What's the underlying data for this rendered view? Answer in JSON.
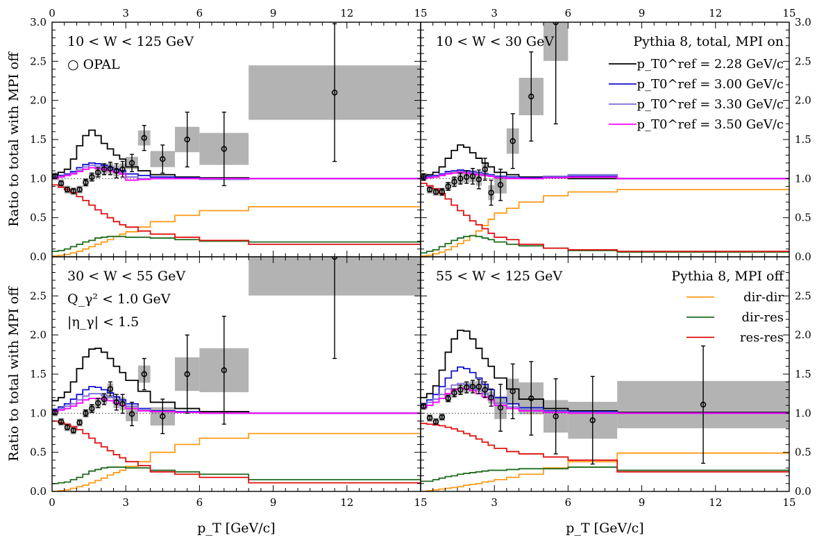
{
  "chart_data": {
    "type": "line",
    "layout": "2x2 panels, shared axes",
    "xlabel": "p_T [GeV/c]",
    "ylabel": "Ratio to total with MPI off",
    "xlim": [
      0,
      15
    ],
    "ylim": [
      0,
      3.0
    ],
    "x_ticks": [
      "0",
      "3",
      "6",
      "9",
      "12",
      "15"
    ],
    "y_ticks": [
      "0.0",
      "0.5",
      "1.0",
      "1.5",
      "2.0",
      "2.5",
      "3.0"
    ],
    "reference_line": 1.0,
    "legend_total": {
      "title": "Pythia 8, total, MPI on",
      "entries": [
        {
          "label": "p_T0^ref = 2.28 GeV/c",
          "color": "#000000"
        },
        {
          "label": "p_T0^ref = 3.00 GeV/c",
          "color": "#1010d0"
        },
        {
          "label": "p_T0^ref = 3.30 GeV/c",
          "color": "#7a6ad8"
        },
        {
          "label": "p_T0^ref = 3.50 GeV/c",
          "color": "#ff00ff"
        }
      ]
    },
    "legend_components": {
      "title": "Pythia 8, MPI off",
      "entries": [
        {
          "label": "dir-dir",
          "color": "#ff9a1a"
        },
        {
          "label": "dir-res",
          "color": "#1e6b1e"
        },
        {
          "label": "res-res",
          "color": "#e01010"
        }
      ]
    },
    "data_label": "OPAL",
    "panels": [
      {
        "labels": [
          "10 < W < 125 GeV",
          "○ OPAL"
        ],
        "edges": [
          0,
          0.25,
          0.5,
          0.75,
          1.0,
          1.25,
          1.5,
          1.75,
          2.0,
          2.25,
          2.5,
          2.75,
          3.0,
          3.5,
          4.0,
          5.0,
          6.0,
          8.0,
          15.0
        ],
        "series": {
          "p228": [
            1.05,
            1.08,
            1.12,
            1.25,
            1.42,
            1.55,
            1.62,
            1.55,
            1.45,
            1.38,
            1.3,
            1.25,
            1.15,
            1.1,
            1.05,
            1.02,
            1.01,
            1.0
          ],
          "p300": [
            1.02,
            1.04,
            1.06,
            1.09,
            1.14,
            1.18,
            1.2,
            1.19,
            1.17,
            1.14,
            1.12,
            1.1,
            1.06,
            1.04,
            1.02,
            1.01,
            1.0,
            1.0
          ],
          "p330": [
            1.01,
            1.03,
            1.05,
            1.07,
            1.11,
            1.15,
            1.17,
            1.16,
            1.15,
            1.13,
            1.1,
            1.08,
            1.02,
            1.0,
            1.0,
            1.0,
            0.99,
            1.0
          ],
          "p350": [
            1.0,
            1.02,
            1.04,
            1.06,
            1.09,
            1.12,
            1.14,
            1.13,
            1.12,
            1.1,
            1.08,
            1.06,
            0.98,
            0.99,
            1.0,
            1.0,
            1.0,
            1.0
          ],
          "dir_dir": [
            0.01,
            0.02,
            0.03,
            0.05,
            0.07,
            0.1,
            0.13,
            0.16,
            0.19,
            0.22,
            0.26,
            0.29,
            0.32,
            0.38,
            0.45,
            0.53,
            0.59,
            0.64
          ],
          "dir_res": [
            0.07,
            0.08,
            0.1,
            0.13,
            0.16,
            0.19,
            0.21,
            0.24,
            0.25,
            0.26,
            0.26,
            0.26,
            0.25,
            0.25,
            0.24,
            0.22,
            0.2,
            0.19
          ],
          "res_res": [
            0.92,
            0.89,
            0.86,
            0.82,
            0.77,
            0.72,
            0.66,
            0.6,
            0.55,
            0.5,
            0.45,
            0.41,
            0.38,
            0.33,
            0.29,
            0.25,
            0.21,
            0.16
          ]
        },
        "opal": [
          {
            "x": 0.12,
            "y": 1.03,
            "err": 0.03
          },
          {
            "x": 0.37,
            "y": 0.94,
            "err": 0.03
          },
          {
            "x": 0.62,
            "y": 0.86,
            "err": 0.03
          },
          {
            "x": 0.87,
            "y": 0.84,
            "err": 0.03
          },
          {
            "x": 1.12,
            "y": 0.86,
            "err": 0.03
          },
          {
            "x": 1.37,
            "y": 0.95,
            "err": 0.04
          },
          {
            "x": 1.62,
            "y": 1.02,
            "err": 0.05
          },
          {
            "x": 1.87,
            "y": 1.08,
            "err": 0.06
          },
          {
            "x": 2.12,
            "y": 1.12,
            "err": 0.07
          },
          {
            "x": 2.37,
            "y": 1.13,
            "err": 0.08
          },
          {
            "x": 2.62,
            "y": 1.1,
            "err": 0.09
          },
          {
            "x": 2.87,
            "y": 1.12,
            "err": 0.1
          },
          {
            "x": 3.25,
            "y": 1.2,
            "err": 0.11
          },
          {
            "x": 3.75,
            "y": 1.52,
            "err": 0.16
          },
          {
            "x": 4.5,
            "y": 1.25,
            "err": 0.18
          },
          {
            "x": 5.5,
            "y": 1.5,
            "err": 0.35
          },
          {
            "x": 7.0,
            "y": 1.38,
            "err": 0.47
          },
          {
            "x": 11.5,
            "y": 2.1,
            "err": 0.88
          }
        ]
      },
      {
        "labels": [
          "10 < W < 30 GeV"
        ],
        "edges": [
          0,
          0.25,
          0.5,
          0.75,
          1.0,
          1.25,
          1.5,
          1.75,
          2.0,
          2.25,
          2.5,
          2.75,
          3.0,
          3.5,
          4.0,
          5.0,
          6.0,
          8.0,
          15.0
        ],
        "series": {
          "p228": [
            1.02,
            1.05,
            1.08,
            1.15,
            1.26,
            1.36,
            1.43,
            1.4,
            1.33,
            1.26,
            1.2,
            1.15,
            1.08,
            1.05,
            1.02,
            1.01,
            1.0,
            1.0
          ],
          "p300": [
            1.01,
            1.03,
            1.04,
            1.06,
            1.09,
            1.1,
            1.11,
            1.1,
            1.09,
            1.08,
            1.06,
            1.05,
            1.03,
            1.02,
            1.01,
            1.02,
            1.03,
            1.0
          ],
          "p330": [
            1.0,
            1.02,
            1.03,
            1.05,
            1.07,
            1.09,
            1.09,
            1.08,
            1.08,
            1.07,
            1.05,
            1.04,
            1.02,
            1.01,
            1.0,
            1.03,
            1.05,
            1.0
          ],
          "p350": [
            1.0,
            1.01,
            1.02,
            1.04,
            1.06,
            1.07,
            1.08,
            1.07,
            1.06,
            1.05,
            1.04,
            1.03,
            1.01,
            1.0,
            1.0,
            1.01,
            1.02,
            1.0
          ],
          "dir_dir": [
            0.01,
            0.02,
            0.04,
            0.06,
            0.09,
            0.13,
            0.17,
            0.21,
            0.27,
            0.33,
            0.4,
            0.48,
            0.56,
            0.62,
            0.7,
            0.78,
            0.83,
            0.86
          ],
          "dir_res": [
            0.05,
            0.07,
            0.09,
            0.13,
            0.17,
            0.21,
            0.24,
            0.26,
            0.27,
            0.26,
            0.24,
            0.22,
            0.19,
            0.16,
            0.14,
            0.11,
            0.08,
            0.06
          ],
          "res_res": [
            0.94,
            0.91,
            0.87,
            0.81,
            0.74,
            0.66,
            0.59,
            0.53,
            0.46,
            0.41,
            0.36,
            0.3,
            0.25,
            0.22,
            0.16,
            0.11,
            0.09,
            0.07
          ]
        },
        "opal": [
          {
            "x": 0.12,
            "y": 1.02,
            "err": 0.04
          },
          {
            "x": 0.37,
            "y": 0.86,
            "err": 0.03
          },
          {
            "x": 0.62,
            "y": 0.83,
            "err": 0.03
          },
          {
            "x": 0.87,
            "y": 0.83,
            "err": 0.04
          },
          {
            "x": 1.12,
            "y": 0.9,
            "err": 0.05
          },
          {
            "x": 1.37,
            "y": 0.96,
            "err": 0.06
          },
          {
            "x": 1.62,
            "y": 1.0,
            "err": 0.07
          },
          {
            "x": 1.87,
            "y": 1.02,
            "err": 0.08
          },
          {
            "x": 2.12,
            "y": 1.03,
            "err": 0.1
          },
          {
            "x": 2.37,
            "y": 0.99,
            "err": 0.12
          },
          {
            "x": 2.62,
            "y": 1.12,
            "err": 0.14
          },
          {
            "x": 2.87,
            "y": 0.82,
            "err": 0.16
          },
          {
            "x": 3.25,
            "y": 0.92,
            "err": 0.2
          },
          {
            "x": 3.75,
            "y": 1.48,
            "err": 0.35
          },
          {
            "x": 4.5,
            "y": 2.05,
            "err": 0.57
          },
          {
            "x": 5.5,
            "y": 3.0,
            "err": 1.3
          }
        ]
      },
      {
        "labels": [
          "30 < W < 55 GeV",
          "Q_γ² < 1.0 GeV",
          "|η_γ| < 1.5"
        ],
        "edges": [
          0,
          0.25,
          0.5,
          0.75,
          1.0,
          1.25,
          1.5,
          1.75,
          2.0,
          2.25,
          2.5,
          2.75,
          3.0,
          3.5,
          4.0,
          5.0,
          6.0,
          8.0,
          15.0
        ],
        "series": {
          "p228": [
            1.16,
            1.2,
            1.27,
            1.4,
            1.57,
            1.72,
            1.82,
            1.83,
            1.78,
            1.7,
            1.6,
            1.52,
            1.42,
            1.28,
            1.14,
            1.06,
            1.02,
            1.0
          ],
          "p300": [
            1.05,
            1.08,
            1.12,
            1.18,
            1.24,
            1.3,
            1.34,
            1.33,
            1.3,
            1.26,
            1.21,
            1.17,
            1.12,
            1.06,
            1.03,
            1.02,
            1.0,
            1.0
          ],
          "p330": [
            1.03,
            1.06,
            1.09,
            1.12,
            1.17,
            1.22,
            1.25,
            1.25,
            1.23,
            1.2,
            1.17,
            1.14,
            1.09,
            1.05,
            1.02,
            1.01,
            1.0,
            1.0
          ],
          "p350": [
            1.02,
            1.04,
            1.06,
            1.09,
            1.13,
            1.17,
            1.19,
            1.19,
            1.18,
            1.16,
            1.13,
            1.1,
            1.06,
            1.03,
            1.02,
            1.01,
            1.0,
            1.0
          ],
          "dir_dir": [
            0.0,
            0.01,
            0.02,
            0.04,
            0.06,
            0.08,
            0.11,
            0.14,
            0.17,
            0.21,
            0.24,
            0.27,
            0.32,
            0.38,
            0.5,
            0.6,
            0.68,
            0.74
          ],
          "dir_res": [
            0.1,
            0.11,
            0.12,
            0.15,
            0.18,
            0.22,
            0.26,
            0.28,
            0.3,
            0.31,
            0.31,
            0.31,
            0.3,
            0.3,
            0.27,
            0.25,
            0.22,
            0.15
          ],
          "res_res": [
            0.9,
            0.88,
            0.86,
            0.83,
            0.79,
            0.74,
            0.68,
            0.62,
            0.57,
            0.52,
            0.47,
            0.43,
            0.38,
            0.33,
            0.25,
            0.22,
            0.18,
            0.11
          ]
        },
        "opal": [
          {
            "x": 0.12,
            "y": 1.01,
            "err": 0.03
          },
          {
            "x": 0.37,
            "y": 0.89,
            "err": 0.03
          },
          {
            "x": 0.62,
            "y": 0.82,
            "err": 0.03
          },
          {
            "x": 0.87,
            "y": 0.78,
            "err": 0.03
          },
          {
            "x": 1.12,
            "y": 0.88,
            "err": 0.03
          },
          {
            "x": 1.37,
            "y": 1.0,
            "err": 0.04
          },
          {
            "x": 1.62,
            "y": 1.06,
            "err": 0.05
          },
          {
            "x": 1.87,
            "y": 1.13,
            "err": 0.06
          },
          {
            "x": 2.12,
            "y": 1.18,
            "err": 0.07
          },
          {
            "x": 2.37,
            "y": 1.31,
            "err": 0.09
          },
          {
            "x": 2.62,
            "y": 1.14,
            "err": 0.1
          },
          {
            "x": 2.87,
            "y": 1.12,
            "err": 0.12
          },
          {
            "x": 3.25,
            "y": 0.99,
            "err": 0.15
          },
          {
            "x": 3.75,
            "y": 1.5,
            "err": 0.2
          },
          {
            "x": 4.5,
            "y": 0.96,
            "err": 0.22
          },
          {
            "x": 5.5,
            "y": 1.5,
            "err": 0.5
          },
          {
            "x": 7.0,
            "y": 1.55,
            "err": 0.69
          },
          {
            "x": 11.5,
            "y": 3.0,
            "err": 1.3
          }
        ]
      },
      {
        "labels": [
          "55 < W < 125 GeV"
        ],
        "edges": [
          0,
          0.25,
          0.5,
          0.75,
          1.0,
          1.25,
          1.5,
          1.75,
          2.0,
          2.25,
          2.5,
          2.75,
          3.0,
          3.5,
          4.0,
          5.0,
          6.0,
          8.0,
          15.0
        ],
        "series": {
          "p228": [
            1.2,
            1.25,
            1.35,
            1.55,
            1.78,
            1.95,
            2.06,
            2.05,
            1.95,
            1.83,
            1.7,
            1.6,
            1.45,
            1.31,
            1.18,
            1.06,
            1.03,
            1.01
          ],
          "p300": [
            1.12,
            1.17,
            1.24,
            1.34,
            1.45,
            1.54,
            1.59,
            1.57,
            1.52,
            1.45,
            1.37,
            1.3,
            1.2,
            1.12,
            1.07,
            1.03,
            1.02,
            1.0
          ],
          "p330": [
            1.1,
            1.14,
            1.18,
            1.24,
            1.31,
            1.36,
            1.38,
            1.37,
            1.34,
            1.3,
            1.25,
            1.21,
            1.13,
            1.08,
            1.04,
            1.02,
            1.01,
            1.0
          ],
          "p350": [
            1.07,
            1.1,
            1.14,
            1.19,
            1.25,
            1.3,
            1.32,
            1.31,
            1.29,
            1.25,
            1.21,
            1.17,
            1.1,
            1.06,
            1.03,
            1.01,
            1.0,
            1.0
          ],
          "dir_dir": [
            0.0,
            0.01,
            0.02,
            0.03,
            0.04,
            0.05,
            0.06,
            0.08,
            0.09,
            0.1,
            0.12,
            0.13,
            0.15,
            0.18,
            0.22,
            0.3,
            0.38,
            0.49
          ],
          "dir_res": [
            0.13,
            0.13,
            0.15,
            0.17,
            0.19,
            0.2,
            0.22,
            0.23,
            0.24,
            0.25,
            0.26,
            0.27,
            0.27,
            0.28,
            0.29,
            0.29,
            0.31,
            0.27
          ],
          "res_res": [
            0.87,
            0.86,
            0.85,
            0.84,
            0.82,
            0.8,
            0.77,
            0.74,
            0.71,
            0.67,
            0.63,
            0.59,
            0.55,
            0.51,
            0.48,
            0.44,
            0.4,
            0.25
          ]
        },
        "opal": [
          {
            "x": 0.12,
            "y": 1.09,
            "err": 0.03
          },
          {
            "x": 0.37,
            "y": 0.94,
            "err": 0.03
          },
          {
            "x": 0.62,
            "y": 0.89,
            "err": 0.03
          },
          {
            "x": 0.87,
            "y": 0.95,
            "err": 0.03
          },
          {
            "x": 1.12,
            "y": 1.19,
            "err": 0.04
          },
          {
            "x": 1.37,
            "y": 1.26,
            "err": 0.05
          },
          {
            "x": 1.62,
            "y": 1.3,
            "err": 0.06
          },
          {
            "x": 1.87,
            "y": 1.33,
            "err": 0.07
          },
          {
            "x": 2.12,
            "y": 1.34,
            "err": 0.08
          },
          {
            "x": 2.37,
            "y": 1.34,
            "err": 0.09
          },
          {
            "x": 2.62,
            "y": 1.3,
            "err": 0.1
          },
          {
            "x": 2.87,
            "y": 1.2,
            "err": 0.11
          },
          {
            "x": 3.25,
            "y": 1.07,
            "err": 0.3
          },
          {
            "x": 3.75,
            "y": 1.28,
            "err": 0.35
          },
          {
            "x": 4.5,
            "y": 1.19,
            "err": 0.47
          },
          {
            "x": 5.5,
            "y": 0.96,
            "err": 0.48
          },
          {
            "x": 7.0,
            "y": 0.91,
            "err": 0.56
          },
          {
            "x": 11.5,
            "y": 1.11,
            "err": 0.75
          }
        ]
      }
    ]
  }
}
